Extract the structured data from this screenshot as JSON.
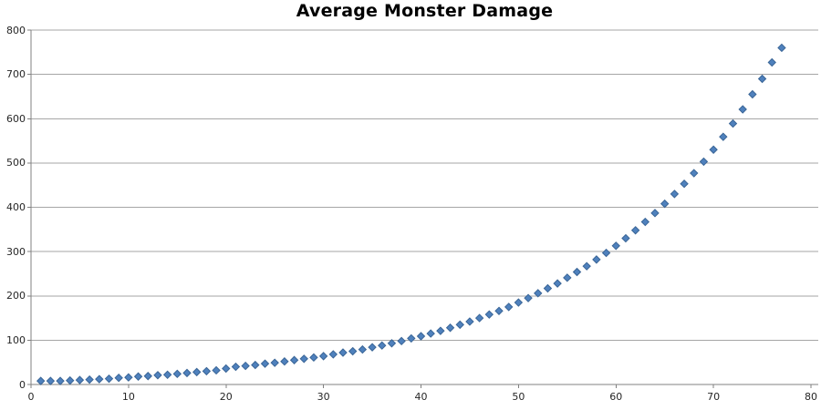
{
  "chart_data": {
    "type": "scatter",
    "title": "Average Monster Damage",
    "marker": "diamond",
    "legend": "none",
    "grid": "horizontal",
    "xlim": [
      0,
      80
    ],
    "ylim": [
      0,
      800
    ],
    "x_ticks": [
      0,
      10,
      20,
      30,
      40,
      50,
      60,
      70,
      80
    ],
    "y_ticks": [
      0,
      100,
      200,
      300,
      400,
      500,
      600,
      700,
      800
    ],
    "x": [
      1,
      2,
      3,
      4,
      5,
      6,
      7,
      8,
      9,
      10,
      11,
      12,
      13,
      14,
      15,
      16,
      17,
      18,
      19,
      20,
      21,
      22,
      23,
      24,
      25,
      26,
      27,
      28,
      29,
      30,
      31,
      32,
      33,
      34,
      35,
      36,
      37,
      38,
      39,
      40,
      41,
      42,
      43,
      44,
      45,
      46,
      47,
      48,
      49,
      50,
      51,
      52,
      53,
      54,
      55,
      56,
      57,
      58,
      59,
      60,
      61,
      62,
      63,
      64,
      65,
      66,
      67,
      68,
      69,
      70,
      71,
      72,
      73,
      74,
      75,
      76,
      77
    ],
    "y": [
      8,
      8,
      8,
      9,
      10,
      11,
      12,
      13,
      15,
      16,
      18,
      19,
      21,
      22,
      24,
      26,
      28,
      30,
      32,
      36,
      40,
      42,
      44,
      47,
      49,
      52,
      55,
      58,
      61,
      64,
      68,
      72,
      75,
      79,
      84,
      88,
      93,
      98,
      104,
      109,
      115,
      121,
      128,
      135,
      142,
      150,
      158,
      166,
      175,
      185,
      195,
      206,
      217,
      228,
      241,
      254,
      267,
      282,
      297,
      313,
      330,
      348,
      367,
      387,
      408,
      430,
      453,
      477,
      503,
      530,
      559,
      589,
      621,
      655,
      690,
      727,
      760
    ],
    "colors": {
      "marker_fill": "#4F81BD",
      "marker_stroke": "#3A6596",
      "gridline": "#A6A6A6",
      "axis": "#808080",
      "tick_label": "#262626",
      "title": "#000000",
      "background": "#FFFFFF"
    }
  }
}
